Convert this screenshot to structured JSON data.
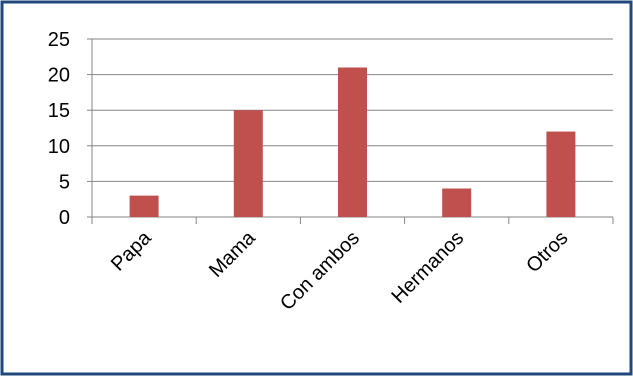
{
  "chart_data": {
    "type": "bar",
    "categories": [
      "Papa",
      "Mama",
      "Con ambos",
      "Hermanos",
      "Otros"
    ],
    "values": [
      3,
      15,
      21,
      4,
      12
    ],
    "title": "",
    "xlabel": "",
    "ylabel": "",
    "ylim": [
      0,
      25
    ],
    "yticks": [
      "0",
      "5",
      "10",
      "15",
      "20",
      "25"
    ],
    "grid": true,
    "legend": "none",
    "bar_color": "#c0504d",
    "border_color": "#1f497d",
    "grid_color": "#868686"
  }
}
